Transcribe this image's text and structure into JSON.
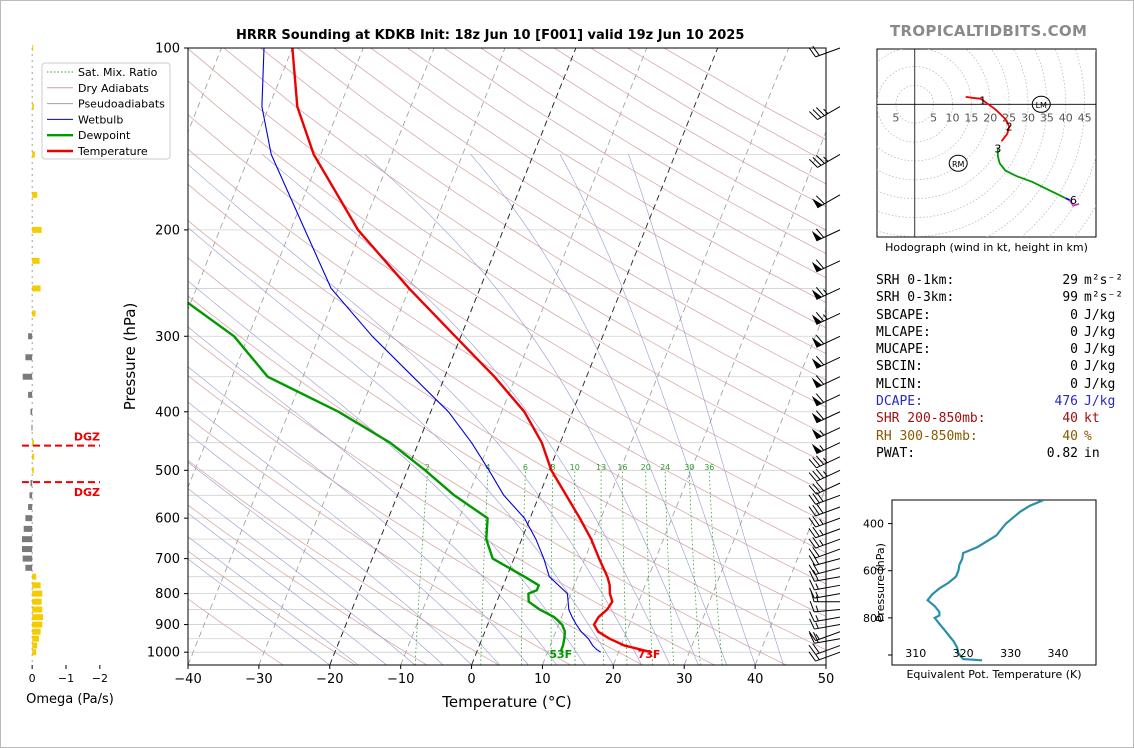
{
  "brand": "TROPICALTIDBITS.COM",
  "title": "HRRR Sounding at KDKB Init: 18z Jun 10 [F001] valid 19z Jun 10 2025",
  "chart_data": {
    "type": "skew-t",
    "xlabel": "Temperature (°C)",
    "ylabel": "Pressure (hPa)",
    "x_ticks": [
      "−40",
      "−30",
      "−20",
      "−10",
      "0",
      "10",
      "20",
      "30",
      "40",
      "50"
    ],
    "y_ticks": [
      "100",
      "200",
      "300",
      "400",
      "500",
      "600",
      "700",
      "800",
      "900",
      "1000"
    ],
    "xlim": [
      -40,
      50
    ],
    "ylim_pressure": [
      1050,
      100
    ],
    "skew_deg_per_decade": 34,
    "legend_position": "top-left",
    "legend": [
      {
        "name": "Sat. Mix. Ratio",
        "color": "#2e9e2e",
        "style": "dotted"
      },
      {
        "name": "Dry Adiabats",
        "color": "#c8a0a0",
        "style": "solid"
      },
      {
        "name": "Pseudoadiabats",
        "color": "#a0a0a0",
        "style": "solid"
      },
      {
        "name": "Wetbulb",
        "color": "#0000dd",
        "style": "solid"
      },
      {
        "name": "Dewpoint",
        "color": "#009a00",
        "style": "solid"
      },
      {
        "name": "Temperature",
        "color": "#ee0000",
        "style": "solid"
      }
    ],
    "mixing_ratio_labels": [
      "2",
      "4",
      "6",
      "8",
      "10",
      "13",
      "16",
      "20",
      "24",
      "30",
      "36"
    ],
    "mixing_ratios": [
      2,
      4,
      6,
      8,
      10,
      13,
      16,
      20,
      24,
      30,
      36
    ],
    "temperature": [
      [
        1000,
        24.6
      ],
      [
        990,
        23
      ],
      [
        975,
        20.5
      ],
      [
        950,
        18
      ],
      [
        925,
        16
      ],
      [
        900,
        15
      ],
      [
        875,
        15.2
      ],
      [
        850,
        16
      ],
      [
        825,
        16.3
      ],
      [
        800,
        15.5
      ],
      [
        775,
        15
      ],
      [
        750,
        14.2
      ],
      [
        700,
        12
      ],
      [
        650,
        9.8
      ],
      [
        600,
        7
      ],
      [
        550,
        3.8
      ],
      [
        500,
        0.3
      ],
      [
        450,
        -2.6
      ],
      [
        400,
        -6.8
      ],
      [
        350,
        -13
      ],
      [
        300,
        -20.8
      ],
      [
        250,
        -30
      ],
      [
        200,
        -40.5
      ],
      [
        150,
        -51
      ],
      [
        125,
        -56
      ],
      [
        100,
        -60
      ]
    ],
    "dewpoint": [
      [
        1000,
        12
      ],
      [
        990,
        11.8
      ],
      [
        975,
        11.8
      ],
      [
        950,
        11.6
      ],
      [
        925,
        11.3
      ],
      [
        900,
        10.5
      ],
      [
        875,
        9
      ],
      [
        850,
        6.5
      ],
      [
        825,
        4.5
      ],
      [
        800,
        4
      ],
      [
        790,
        5
      ],
      [
        775,
        5
      ],
      [
        750,
        2.5
      ],
      [
        700,
        -3
      ],
      [
        650,
        -5
      ],
      [
        600,
        -6
      ],
      [
        550,
        -12
      ],
      [
        500,
        -17.5
      ],
      [
        450,
        -24
      ],
      [
        400,
        -33
      ],
      [
        350,
        -45
      ],
      [
        300,
        -52
      ],
      [
        250,
        -64
      ],
      [
        200,
        -73
      ],
      [
        150,
        -84
      ],
      [
        125,
        -89
      ],
      [
        100,
        -92
      ]
    ],
    "wetbulb": [
      [
        1000,
        17.5
      ],
      [
        990,
        16.8
      ],
      [
        975,
        16
      ],
      [
        950,
        15
      ],
      [
        925,
        13.6
      ],
      [
        900,
        12.5
      ],
      [
        875,
        11.5
      ],
      [
        850,
        10.6
      ],
      [
        800,
        9.5
      ],
      [
        750,
        6
      ],
      [
        700,
        4.2
      ],
      [
        650,
        2
      ],
      [
        600,
        -0.8
      ],
      [
        550,
        -5
      ],
      [
        500,
        -8.5
      ],
      [
        450,
        -12.5
      ],
      [
        400,
        -17.5
      ],
      [
        350,
        -24.5
      ],
      [
        300,
        -32.5
      ],
      [
        250,
        -41
      ],
      [
        200,
        -48
      ],
      [
        150,
        -57
      ],
      [
        125,
        -61
      ],
      [
        100,
        -64
      ]
    ],
    "surface_labels": {
      "temperature": "73F",
      "dewpoint": "53F"
    },
    "omega": {
      "xlabel": "Omega (Pa/s)",
      "x_ticks": [
        "0",
        "−1",
        "−2"
      ],
      "xlim": [
        0.3,
        -2.3
      ],
      "dgz_label": "DGZ",
      "dgz_pressures": [
        455,
        523
      ],
      "values": [
        [
          1000,
          -0.12
        ],
        [
          975,
          -0.15
        ],
        [
          950,
          -0.2
        ],
        [
          925,
          -0.25
        ],
        [
          900,
          -0.3
        ],
        [
          875,
          -0.32
        ],
        [
          850,
          -0.3
        ],
        [
          825,
          -0.28
        ],
        [
          800,
          -0.3
        ],
        [
          775,
          -0.25
        ],
        [
          750,
          -0.12
        ],
        [
          725,
          0.2
        ],
        [
          700,
          0.28
        ],
        [
          675,
          0.3
        ],
        [
          650,
          0.3
        ],
        [
          625,
          0.25
        ],
        [
          600,
          0.2
        ],
        [
          575,
          0.12
        ],
        [
          550,
          0.08
        ],
        [
          525,
          0.05
        ],
        [
          500,
          -0.05
        ],
        [
          475,
          -0.06
        ],
        [
          450,
          -0.05
        ],
        [
          425,
          0.02
        ],
        [
          400,
          0.05
        ],
        [
          375,
          0.12
        ],
        [
          350,
          0.28
        ],
        [
          325,
          0.2
        ],
        [
          300,
          0.12
        ],
        [
          275,
          -0.1
        ],
        [
          250,
          -0.25
        ],
        [
          225,
          -0.22
        ],
        [
          200,
          -0.28
        ],
        [
          175,
          -0.15
        ],
        [
          150,
          -0.08
        ],
        [
          125,
          -0.05
        ],
        [
          100,
          -0.02
        ]
      ]
    },
    "wind_barbs": [
      {
        "p": 1000,
        "spd": 15,
        "dir": 250
      },
      {
        "p": 975,
        "spd": 20,
        "dir": 250
      },
      {
        "p": 950,
        "spd": 20,
        "dir": 260
      },
      {
        "p": 925,
        "spd": 15,
        "dir": 250
      },
      {
        "p": 900,
        "spd": 15,
        "dir": 260
      },
      {
        "p": 875,
        "spd": 15,
        "dir": 260
      },
      {
        "p": 850,
        "spd": 15,
        "dir": 265
      },
      {
        "p": 825,
        "spd": 15,
        "dir": 270
      },
      {
        "p": 800,
        "spd": 15,
        "dir": 260
      },
      {
        "p": 775,
        "spd": 15,
        "dir": 260
      },
      {
        "p": 750,
        "spd": 20,
        "dir": 260
      },
      {
        "p": 725,
        "spd": 20,
        "dir": 255
      },
      {
        "p": 700,
        "spd": 20,
        "dir": 255
      },
      {
        "p": 675,
        "spd": 20,
        "dir": 250
      },
      {
        "p": 650,
        "spd": 25,
        "dir": 250
      },
      {
        "p": 625,
        "spd": 25,
        "dir": 250
      },
      {
        "p": 600,
        "spd": 25,
        "dir": 250
      },
      {
        "p": 575,
        "spd": 30,
        "dir": 250
      },
      {
        "p": 550,
        "spd": 30,
        "dir": 250
      },
      {
        "p": 525,
        "spd": 30,
        "dir": 245
      },
      {
        "p": 500,
        "spd": 35,
        "dir": 245
      },
      {
        "p": 475,
        "spd": 35,
        "dir": 245
      },
      {
        "p": 450,
        "spd": 55,
        "dir": 245
      },
      {
        "p": 425,
        "spd": 55,
        "dir": 245
      },
      {
        "p": 400,
        "spd": 60,
        "dir": 245
      },
      {
        "p": 375,
        "spd": 60,
        "dir": 245
      },
      {
        "p": 350,
        "spd": 60,
        "dir": 245
      },
      {
        "p": 325,
        "spd": 60,
        "dir": 245
      },
      {
        "p": 300,
        "spd": 60,
        "dir": 245
      },
      {
        "p": 275,
        "spd": 65,
        "dir": 245
      },
      {
        "p": 250,
        "spd": 65,
        "dir": 245
      },
      {
        "p": 225,
        "spd": 60,
        "dir": 245
      },
      {
        "p": 200,
        "spd": 60,
        "dir": 245
      },
      {
        "p": 175,
        "spd": 60,
        "dir": 240
      },
      {
        "p": 150,
        "spd": 35,
        "dir": 240
      },
      {
        "p": 125,
        "spd": 35,
        "dir": 240
      },
      {
        "p": 100,
        "spd": 20,
        "dir": 250
      }
    ],
    "hodograph": {
      "caption": "Hodograph (wind in kt, height in km)",
      "ring_labels": [
        "5",
        "5",
        "10",
        "15",
        "20",
        "25",
        "30",
        "35",
        "40",
        "45"
      ],
      "ring_values": [
        -5,
        5,
        10,
        15,
        20,
        25,
        30,
        35,
        40,
        45
      ],
      "rings_kt": [
        5,
        10,
        15,
        20,
        25,
        30,
        35,
        40,
        45,
        50,
        55,
        60
      ],
      "xlim": [
        -10,
        48
      ],
      "ylim": [
        -36,
        15
      ],
      "height_labels": [
        {
          "t": "1",
          "u": 18,
          "v": 1
        },
        {
          "t": "2",
          "u": 25,
          "v": -6
        },
        {
          "t": "3",
          "u": 22,
          "v": -12
        },
        {
          "t": "6",
          "u": 42,
          "v": -26
        }
      ],
      "storm_motion": [
        {
          "t": "LM",
          "u": 33.5,
          "v": 0
        },
        {
          "t": "RM",
          "u": 11.5,
          "v": -16
        }
      ],
      "segments": [
        {
          "color": "#ee0000",
          "pts": [
            [
              13.5,
              2
            ],
            [
              15,
              1.8
            ],
            [
              17.5,
              1.5
            ],
            [
              19.5,
              0
            ],
            [
              21.5,
              -1.5
            ],
            [
              24,
              -4
            ],
            [
              25,
              -6
            ],
            [
              24.5,
              -8
            ],
            [
              23,
              -10
            ]
          ]
        },
        {
          "color": "#009a00",
          "pts": [
            [
              22,
              -12
            ],
            [
              22,
              -14
            ],
            [
              22.5,
              -16
            ],
            [
              24,
              -18
            ],
            [
              27,
              -19.5
            ],
            [
              31,
              -21
            ],
            [
              35,
              -23
            ],
            [
              38,
              -24.5
            ],
            [
              40,
              -25.5
            ]
          ]
        },
        {
          "color": "#0000dd",
          "pts": [
            [
              40,
              -25.5
            ],
            [
              41,
              -26
            ]
          ]
        },
        {
          "color": "#cc33cc",
          "pts": [
            [
              41,
              -26
            ],
            [
              42,
              -27.5
            ],
            [
              43.5,
              -27
            ]
          ]
        }
      ]
    },
    "theta_e": {
      "xlabel": "Equivalent Pot. Temperature (K)",
      "ylabel": "Pressure (hPa)",
      "x_ticks": [
        "310",
        "320",
        "330",
        "340"
      ],
      "y_ticks": [
        "400",
        "600",
        "800"
      ],
      "xlim": [
        305,
        348
      ],
      "ylim": [
        1000,
        300
      ],
      "color": "#2a8fa8",
      "profile": [
        [
          980,
          324
        ],
        [
          975,
          320
        ],
        [
          950,
          319
        ],
        [
          925,
          318.7
        ],
        [
          900,
          318
        ],
        [
          875,
          317
        ],
        [
          850,
          316
        ],
        [
          825,
          315
        ],
        [
          800,
          314
        ],
        [
          790,
          315
        ],
        [
          775,
          315
        ],
        [
          750,
          314
        ],
        [
          725,
          312.5
        ],
        [
          700,
          313.5
        ],
        [
          675,
          315
        ],
        [
          650,
          317
        ],
        [
          625,
          318.5
        ],
        [
          600,
          319
        ],
        [
          575,
          319.2
        ],
        [
          550,
          319.8
        ],
        [
          525,
          320
        ],
        [
          500,
          323
        ],
        [
          475,
          325
        ],
        [
          450,
          327
        ],
        [
          425,
          328
        ],
        [
          400,
          329
        ],
        [
          375,
          330.5
        ],
        [
          350,
          332
        ],
        [
          325,
          334
        ],
        [
          300,
          337
        ]
      ]
    }
  },
  "stats": [
    {
      "label": "SRH 0-1km:",
      "value": "29",
      "unit": "m²s⁻²",
      "color": "#000000"
    },
    {
      "label": "SRH 0-3km:",
      "value": "99",
      "unit": "m²s⁻²",
      "color": "#000000"
    },
    {
      "label": "SBCAPE:",
      "value": "0",
      "unit": "J/kg",
      "color": "#000000"
    },
    {
      "label": "MLCAPE:",
      "value": "0",
      "unit": "J/kg",
      "color": "#000000"
    },
    {
      "label": "MUCAPE:",
      "value": "0",
      "unit": "J/kg",
      "color": "#000000"
    },
    {
      "label": "SBCIN:",
      "value": "0",
      "unit": "J/kg",
      "color": "#000000"
    },
    {
      "label": "MLCIN:",
      "value": "0",
      "unit": "J/kg",
      "color": "#000000"
    },
    {
      "label": "DCAPE:",
      "value": "476",
      "unit": "J/kg",
      "color": "#2828c8"
    },
    {
      "label": "SHR 200-850mb:",
      "value": "40",
      "unit": "kt",
      "color": "#a01010"
    },
    {
      "label": "RH 300-850mb:",
      "value": "40",
      "unit": "%",
      "color": "#8a5a00"
    },
    {
      "label": "PWAT:",
      "value": "0.82",
      "unit": "in",
      "color": "#000000"
    }
  ]
}
